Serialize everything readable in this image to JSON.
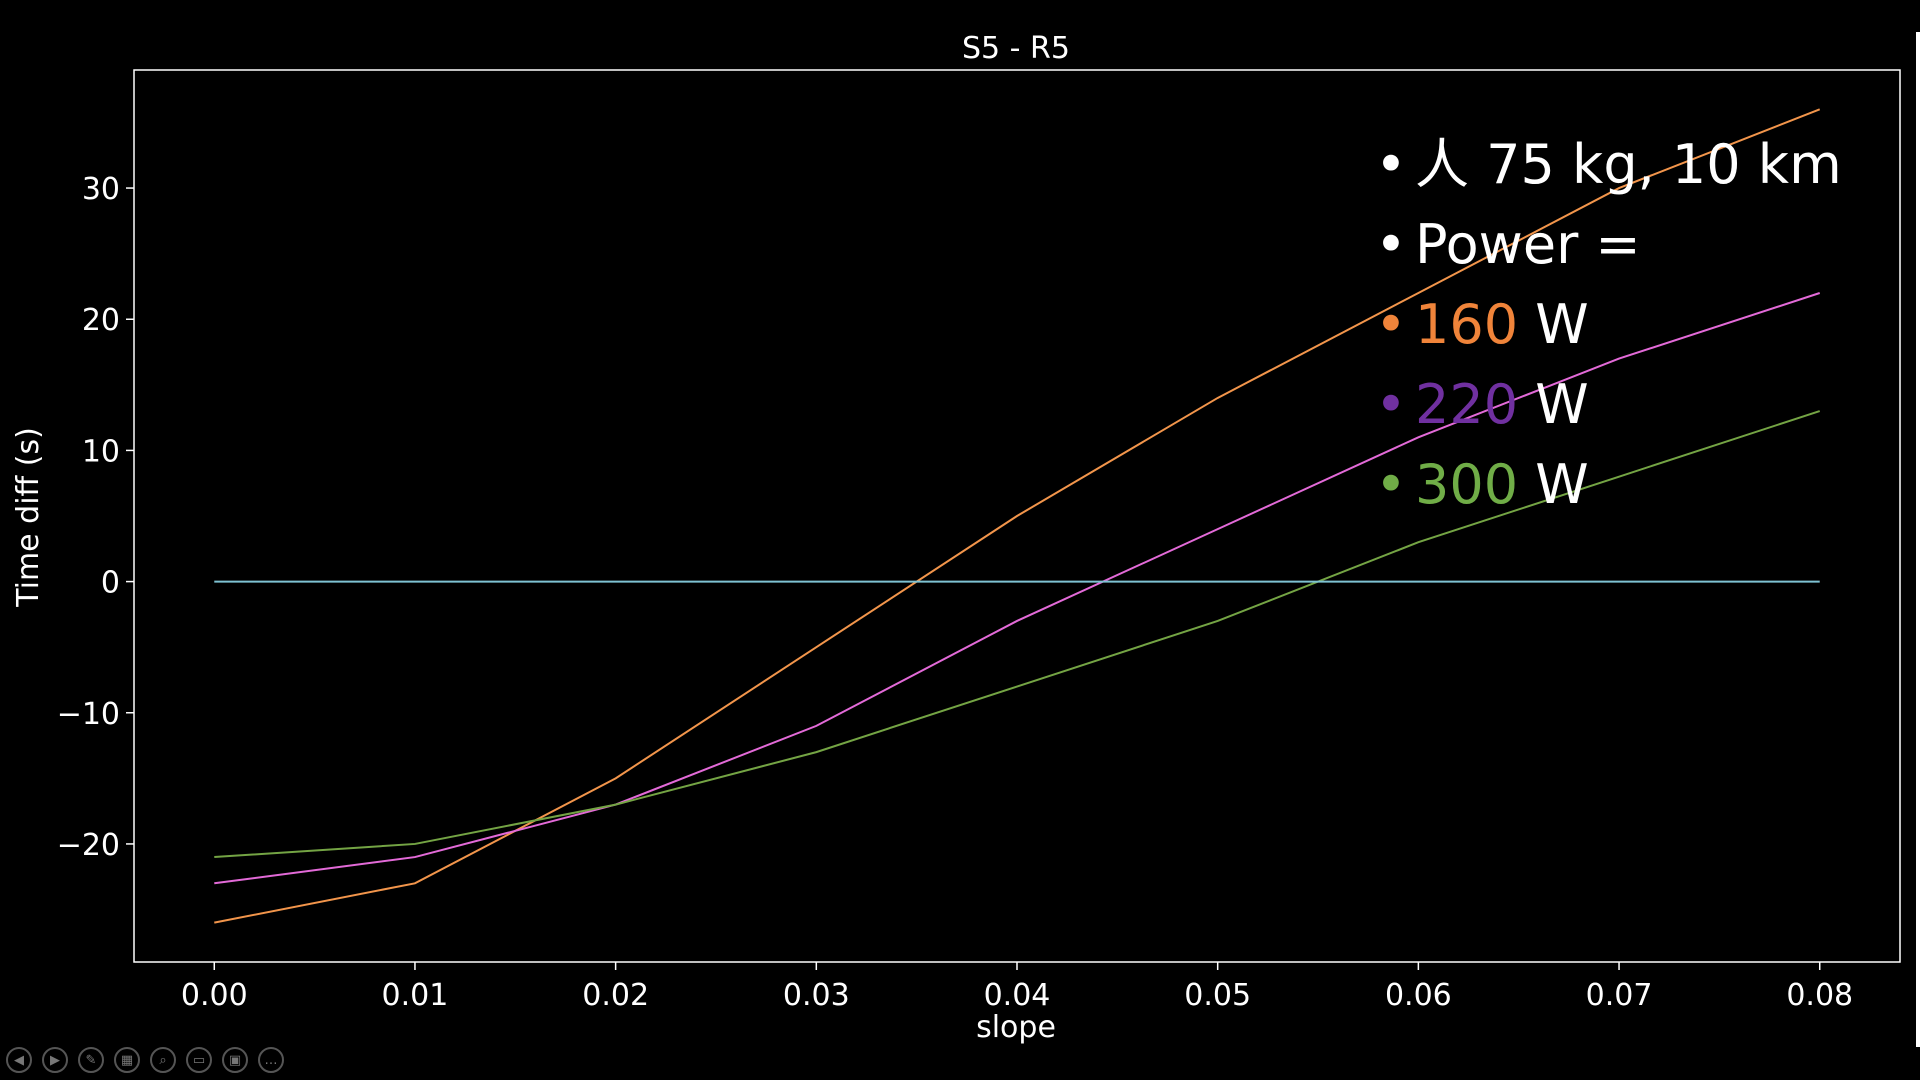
{
  "chart_data": {
    "type": "line",
    "title": "S5 - R5",
    "xlabel": "slope",
    "ylabel": "Time diff (s)",
    "xlim": [
      -0.004,
      0.084
    ],
    "ylim": [
      -29,
      39
    ],
    "xticks": [
      0.0,
      0.01,
      0.02,
      0.03,
      0.04,
      0.05,
      0.06,
      0.07,
      0.08
    ],
    "xtick_labels": [
      "0.00",
      "0.01",
      "0.02",
      "0.03",
      "0.04",
      "0.05",
      "0.06",
      "0.07",
      "0.08"
    ],
    "yticks": [
      -20,
      -10,
      0,
      10,
      20,
      30
    ],
    "ytick_labels": [
      "−20",
      "−10",
      "0",
      "10",
      "20",
      "30"
    ],
    "grid": false,
    "x": [
      0.0,
      0.01,
      0.02,
      0.03,
      0.04,
      0.05,
      0.06,
      0.07,
      0.08
    ],
    "series": [
      {
        "color": "#f2954b",
        "values": [
          -26,
          -23,
          -15,
          -5,
          5,
          14,
          22,
          30,
          36
        ]
      },
      {
        "color": "#e36ad8",
        "values": [
          -23,
          -21,
          -17,
          -11,
          -3,
          4,
          11,
          17,
          22
        ]
      },
      {
        "color": "#74a444",
        "values": [
          -21,
          -20,
          -17,
          -13,
          -8,
          -3,
          3,
          8,
          13
        ]
      },
      {
        "color": "#7ec2d2",
        "values": [
          0,
          0,
          0,
          0,
          0,
          0,
          0,
          0,
          0
        ]
      }
    ]
  },
  "annotations": {
    "bullet": "•",
    "line1": "人 75 kg, 10 km",
    "line2": "Power =",
    "items": [
      {
        "value": "160",
        "unit": "W",
        "color": "#f0843a"
      },
      {
        "value": "220",
        "unit": "W",
        "color": "#7030a0"
      },
      {
        "value": "300",
        "unit": "W",
        "color": "#70ad47"
      }
    ]
  },
  "controls": {
    "prev_icon": "◀",
    "next_icon": "▶",
    "pen_icon": "✎",
    "slides_icon": "▦",
    "zoom_icon": "⌕",
    "subtitles_icon": "▭",
    "camera_icon": "▣",
    "more_icon": "…"
  }
}
